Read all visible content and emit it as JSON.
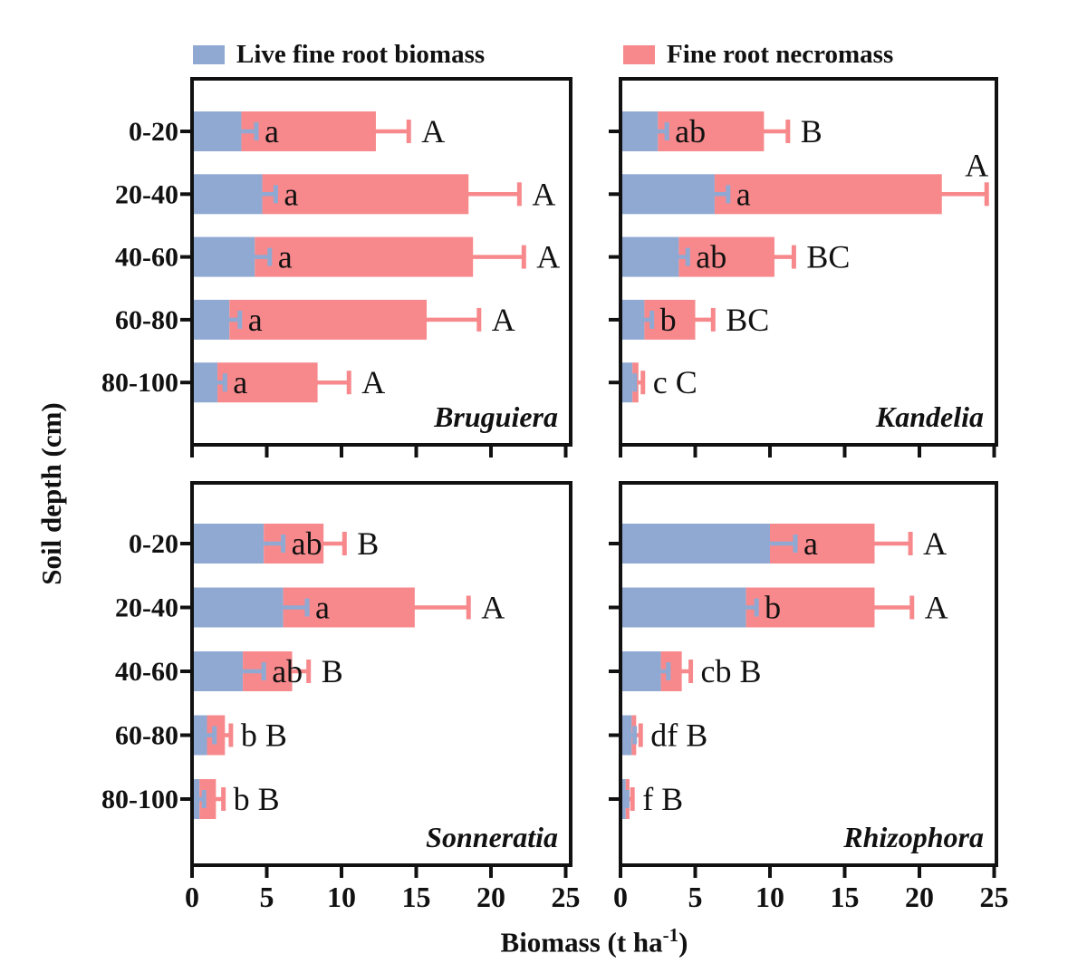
{
  "figure": {
    "legend": [
      {
        "label": "Live fine root biomass",
        "color": "#8FA9D3"
      },
      {
        "label": "Fine root necromass",
        "color": "#F7898C"
      }
    ],
    "y_axis": {
      "title": "Soil depth (cm)",
      "categories": [
        "0-20",
        "20-40",
        "40-60",
        "60-80",
        "80-100"
      ]
    },
    "x_axis": {
      "title": {
        "prefix": "Biomass (t ha",
        "superscript": "-1",
        "suffix": ")"
      },
      "ticks": [
        0,
        5,
        10,
        15,
        20,
        25
      ],
      "range": [
        0,
        25
      ]
    }
  },
  "colors": {
    "live": "#8FA9D3",
    "necro": "#F7898C",
    "axis": "#111111",
    "text": "#111111"
  },
  "chart_data": {
    "type": "bar",
    "orientation": "horizontal",
    "stacked": true,
    "xlabel": "Biomass (t ha-1)",
    "ylabel": "Soil depth (cm)",
    "xlim": [
      0,
      25
    ],
    "categories": [
      "0-20",
      "20-40",
      "40-60",
      "60-80",
      "80-100"
    ],
    "series_names": [
      "Live fine root biomass",
      "Fine root necromass"
    ],
    "panels": [
      {
        "species": "Bruguiera",
        "rows": [
          {
            "depth": "0-20",
            "live": 3.3,
            "necro": 9.0,
            "live_err": 1.0,
            "total_err": 2.2,
            "live_letter": "a",
            "total_letter": "A"
          },
          {
            "depth": "20-40",
            "live": 4.7,
            "necro": 13.8,
            "live_err": 0.9,
            "total_err": 3.4,
            "live_letter": "a",
            "total_letter": "A"
          },
          {
            "depth": "40-60",
            "live": 4.2,
            "necro": 14.6,
            "live_err": 1.0,
            "total_err": 3.4,
            "live_letter": "a",
            "total_letter": "A"
          },
          {
            "depth": "60-80",
            "live": 2.5,
            "necro": 13.2,
            "live_err": 0.7,
            "total_err": 3.5,
            "live_letter": "a",
            "total_letter": "A"
          },
          {
            "depth": "80-100",
            "live": 1.7,
            "necro": 6.7,
            "live_err": 0.5,
            "total_err": 2.1,
            "live_letter": "a",
            "total_letter": "A"
          }
        ]
      },
      {
        "species": "Kandelia",
        "rows": [
          {
            "depth": "0-20",
            "live": 2.5,
            "necro": 7.1,
            "live_err": 0.6,
            "total_err": 1.6,
            "live_letter": "ab",
            "total_letter": "B"
          },
          {
            "depth": "20-40",
            "live": 6.3,
            "necro": 15.2,
            "live_err": 0.9,
            "total_err": 3.0,
            "live_letter": "a",
            "total_letter": "A",
            "total_letter_dx": -38,
            "total_letter_dy": -32
          },
          {
            "depth": "40-60",
            "live": 3.9,
            "necro": 6.4,
            "live_err": 0.6,
            "total_err": 1.3,
            "live_letter": "ab",
            "total_letter": "BC"
          },
          {
            "depth": "60-80",
            "live": 1.6,
            "necro": 3.4,
            "live_err": 0.5,
            "total_err": 1.2,
            "live_letter": "b",
            "total_letter": "BC"
          },
          {
            "depth": "80-100",
            "live": 0.8,
            "necro": 0.4,
            "live_err": 0.15,
            "total_err": 0.3,
            "combined_letter": "c C"
          }
        ]
      },
      {
        "species": "Sonneratia",
        "rows": [
          {
            "depth": "0-20",
            "live": 4.8,
            "necro": 4.0,
            "live_err": 1.3,
            "total_err": 1.4,
            "live_letter": "ab",
            "total_letter": "B"
          },
          {
            "depth": "20-40",
            "live": 6.1,
            "necro": 8.8,
            "live_err": 1.6,
            "total_err": 3.6,
            "live_letter": "a",
            "total_letter": "A"
          },
          {
            "depth": "40-60",
            "live": 3.4,
            "necro": 3.3,
            "live_err": 1.4,
            "total_err": 1.1,
            "live_letter": "ab",
            "total_letter": "B"
          },
          {
            "depth": "60-80",
            "live": 1.0,
            "necro": 1.2,
            "live_err": 0.5,
            "total_err": 0.4,
            "combined_letter": "b B"
          },
          {
            "depth": "80-100",
            "live": 0.5,
            "necro": 1.1,
            "live_err": 0.3,
            "total_err": 0.5,
            "combined_letter": "b B"
          }
        ]
      },
      {
        "species": "Rhizophora",
        "rows": [
          {
            "depth": "0-20",
            "live": 10.0,
            "necro": 7.0,
            "live_err": 1.7,
            "total_err": 2.4,
            "live_letter": "a",
            "total_letter": "A"
          },
          {
            "depth": "20-40",
            "live": 8.4,
            "necro": 8.6,
            "live_err": 0.7,
            "total_err": 2.5,
            "live_letter": "b",
            "total_letter": "A"
          },
          {
            "depth": "40-60",
            "live": 2.7,
            "necro": 1.4,
            "live_err": 0.5,
            "total_err": 0.6,
            "combined_letter": "cb B"
          },
          {
            "depth": "60-80",
            "live": 0.75,
            "necro": 0.3,
            "live_err": 0.2,
            "total_err": 0.3,
            "combined_letter": "df B"
          },
          {
            "depth": "80-100",
            "live": 0.35,
            "necro": 0.25,
            "live_err": 0.1,
            "total_err": 0.2,
            "combined_letter": "f B"
          }
        ]
      }
    ]
  }
}
